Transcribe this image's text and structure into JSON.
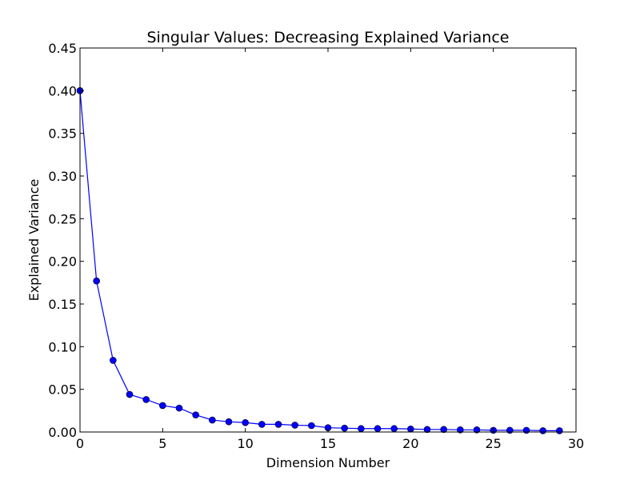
{
  "chart_data": {
    "type": "line",
    "title": "Singular Values: Decreasing Explained Variance",
    "xlabel": "Dimension Number",
    "ylabel": "Explained Variance",
    "xlim": [
      0,
      30
    ],
    "ylim": [
      0,
      0.45
    ],
    "xticks": [
      "0",
      "5",
      "10",
      "15",
      "20",
      "25",
      "30"
    ],
    "yticks": [
      "0.00",
      "0.05",
      "0.10",
      "0.15",
      "0.20",
      "0.25",
      "0.30",
      "0.35",
      "0.40",
      "0.45"
    ],
    "grid": false,
    "legend": false,
    "series": [
      {
        "color": "#0000ff",
        "marker": "circle",
        "x": [
          0,
          1,
          2,
          3,
          4,
          5,
          6,
          7,
          8,
          9,
          10,
          11,
          12,
          13,
          14,
          15,
          16,
          17,
          18,
          19,
          20,
          21,
          22,
          23,
          24,
          25,
          26,
          27,
          28,
          29
        ],
        "y": [
          0.4,
          0.177,
          0.084,
          0.044,
          0.038,
          0.031,
          0.028,
          0.02,
          0.014,
          0.012,
          0.011,
          0.009,
          0.009,
          0.008,
          0.0075,
          0.005,
          0.0045,
          0.004,
          0.004,
          0.004,
          0.0035,
          0.003,
          0.003,
          0.0025,
          0.0025,
          0.002,
          0.002,
          0.002,
          0.0015,
          0.0015
        ]
      }
    ]
  }
}
